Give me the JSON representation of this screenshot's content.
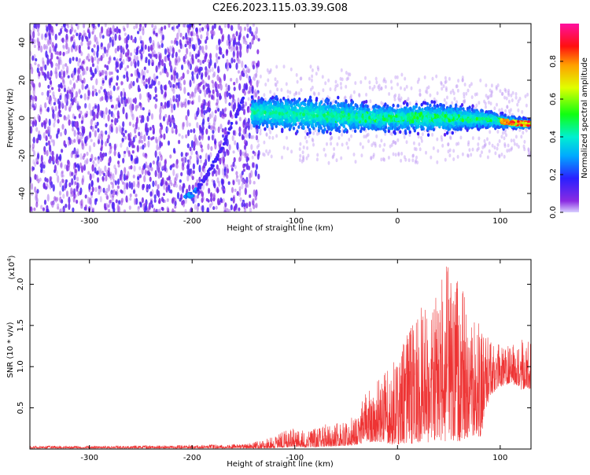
{
  "title": "C2E6.2023.115.03.39.G08",
  "colors": {
    "axis": "#000000",
    "snr_line": "#ee3333",
    "spectrogram_cloud": "#7a2cf0",
    "spectrogram_core": "#2fe5f0"
  },
  "chart_data": [
    {
      "type": "heatmap",
      "title": "",
      "xlabel": "Height of straight line (km)",
      "ylabel": "Frequency (Hz)",
      "xlim": [
        -358,
        130
      ],
      "ylim": [
        -50,
        50
      ],
      "xticks": [
        -300,
        -200,
        -100,
        0,
        100
      ],
      "yticks": [
        -40,
        -20,
        0,
        20,
        40
      ],
      "colorbar": {
        "label": "Normalized spectral amplitude",
        "range": [
          0.0,
          1.0
        ],
        "ticks": [
          "0.0",
          "0.2",
          "0.4",
          "0.6",
          "0.8"
        ],
        "colormap": "rainbow (violet → blue → cyan → green → yellow → orange → red → magenta)"
      },
      "features": {
        "noise_region_x": [
          -358,
          -145
        ],
        "signal_band_center_hz": [
          {
            "x": -140,
            "f": 3
          },
          {
            "x": -100,
            "f": 2
          },
          {
            "x": -60,
            "f": 1
          },
          {
            "x": -20,
            "f": 0
          },
          {
            "x": 20,
            "f": 0
          },
          {
            "x": 60,
            "f": 0
          },
          {
            "x": 90,
            "f": -1
          },
          {
            "x": 120,
            "f": -3
          }
        ],
        "signal_band_halfwidth_hz": [
          {
            "x": -140,
            "w": 10
          },
          {
            "x": -80,
            "w": 12
          },
          {
            "x": -20,
            "w": 9
          },
          {
            "x": 40,
            "w": 10
          },
          {
            "x": 100,
            "w": 5
          },
          {
            "x": 130,
            "w": 3
          }
        ],
        "drift_trace": [
          {
            "x": -210,
            "f": -41
          },
          {
            "x": -200,
            "f": -41
          },
          {
            "x": -185,
            "f": -30
          },
          {
            "x": -170,
            "f": -15
          },
          {
            "x": -160,
            "f": -2
          },
          {
            "x": -150,
            "f": 10
          }
        ],
        "peak_amplitude_x_range": [
          100,
          130
        ]
      }
    },
    {
      "type": "line",
      "title": "",
      "xlabel": "Height of straight line (km)",
      "ylabel": "SNR (10 * v/v)",
      "scale_label_base": "(x10",
      "scale_label_exp": "4",
      "scale_label_close": ")",
      "xlim": [
        -358,
        130
      ],
      "ylim": [
        0,
        23000
      ],
      "xticks": [
        -300,
        -200,
        -100,
        0,
        100
      ],
      "yticks": [
        5000,
        10000,
        15000,
        20000
      ],
      "ytick_labels": [
        "0.5",
        "1.0",
        "1.5",
        "2.0"
      ],
      "series": [
        {
          "x": [
            -358,
            -300,
            -250,
            -200,
            -150,
            -130,
            -110,
            -100,
            -90,
            -70,
            -50,
            -40,
            -30,
            -20,
            -10,
            0,
            10,
            20,
            30,
            40,
            50,
            60,
            70,
            80,
            85,
            90,
            100,
            110,
            120,
            130
          ],
          "max": [
            400,
            400,
            450,
            500,
            600,
            1100,
            2200,
            2600,
            2200,
            3000,
            3300,
            4500,
            7000,
            8200,
            9500,
            11500,
            14000,
            17000,
            17800,
            19500,
            23000,
            20000,
            18500,
            16000,
            14500,
            13000,
            12800,
            12500,
            13500,
            14000
          ],
          "min": [
            100,
            100,
            100,
            100,
            100,
            100,
            200,
            300,
            200,
            300,
            400,
            500,
            800,
            900,
            600,
            500,
            600,
            700,
            800,
            1000,
            800,
            900,
            1500,
            1200,
            3500,
            6500,
            7500,
            8000,
            7200,
            7200
          ]
        }
      ]
    }
  ]
}
